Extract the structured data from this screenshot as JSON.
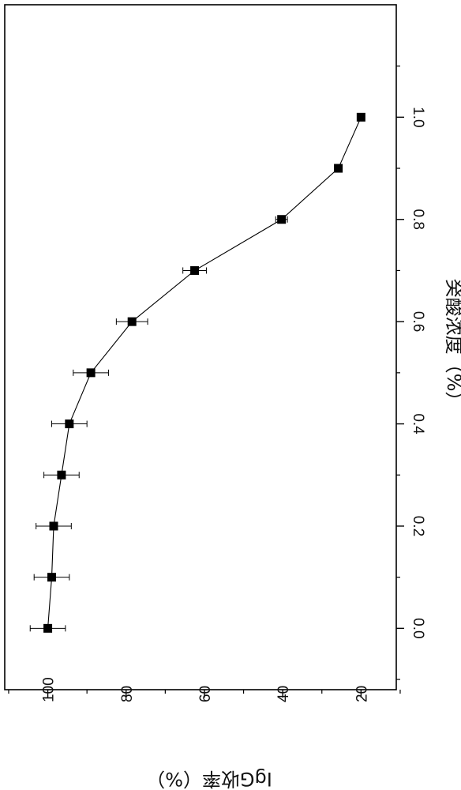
{
  "chart_data": {
    "type": "scatter",
    "orientation": "rotated-90-clockwise",
    "xlabel": "癸酸浓度（%）",
    "ylabel": "IgG收率（%）",
    "xlim": [
      -0.12,
      1.22
    ],
    "ylim": [
      11,
      111
    ],
    "x_ticks": [
      0.0,
      0.2,
      0.4,
      0.6,
      0.8,
      1.0
    ],
    "x_tick_labels": [
      "0.0",
      "0.2",
      "0.4",
      "0.6",
      "0.8",
      "1.0"
    ],
    "y_ticks": [
      100,
      80,
      60,
      40,
      20
    ],
    "y_tick_labels": [
      "100",
      "80",
      "60",
      "40",
      "20"
    ],
    "grid": false,
    "marker": "square",
    "connected": true,
    "series": [
      {
        "color": "#000000",
        "x": [
          0.0,
          0.1,
          0.2,
          0.3,
          0.4,
          0.5,
          0.6,
          0.7,
          0.8,
          0.9,
          1.0
        ],
        "y": [
          100,
          99,
          98.5,
          96.5,
          94.5,
          89,
          78.5,
          62.5,
          40.3,
          25.8,
          20
        ],
        "error": [
          4.5,
          4.5,
          4.5,
          4.5,
          4.5,
          4.5,
          4,
          3,
          1.5,
          0.5,
          0
        ]
      }
    ]
  }
}
